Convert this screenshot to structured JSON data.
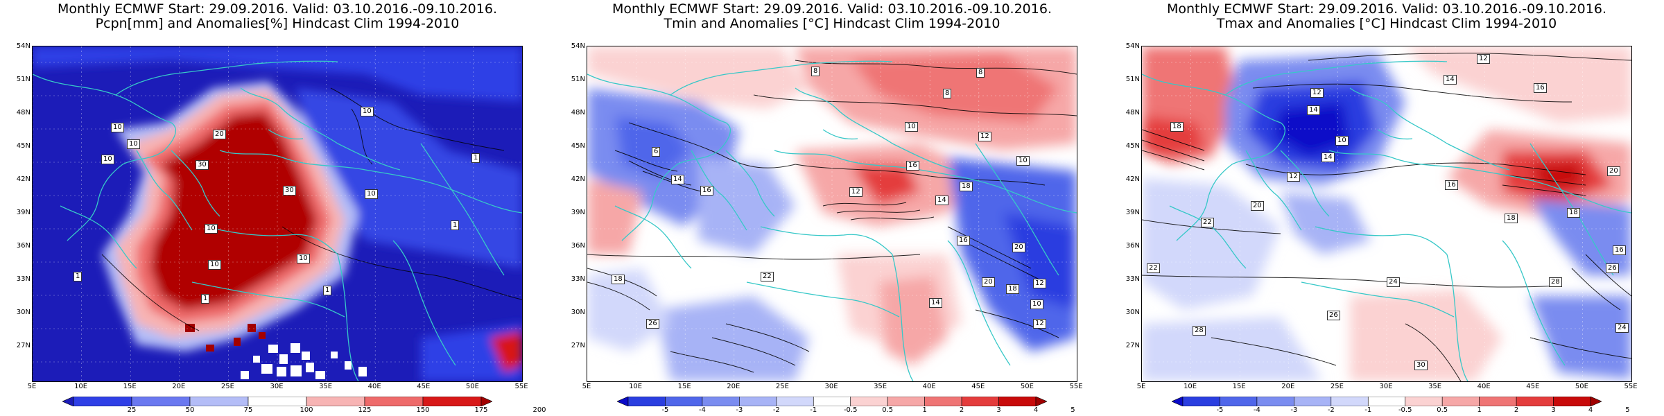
{
  "panels": [
    {
      "title_line1": "Monthly ECMWF Start: 29.09.2016. Valid: 03.10.2016.-09.10.2016.",
      "title_line2": "Pcpn[mm] and Anomalies[%] Hindcast Clim 1994-2010",
      "colorbar": {
        "labels": [
          "25",
          "50",
          "75",
          "100",
          "125",
          "150",
          "175",
          "200"
        ],
        "colors": [
          "#1c1cb8",
          "#2f3fe6",
          "#6a78f0",
          "#b4bdf7",
          "#ffffff",
          "#f7b4b4",
          "#ee6a6a",
          "#d81818",
          "#a20000"
        ]
      },
      "contour_labels": [
        "10",
        "10",
        "10",
        "20",
        "30",
        "30",
        "10",
        "10",
        "10",
        "10",
        "1",
        "1",
        "1",
        "1",
        "1",
        "10"
      ]
    },
    {
      "title_line1": "Monthly ECMWF Start: 29.09.2016. Valid: 03.10.2016.-09.10.2016.",
      "title_line2": "Tmin and Anomalies [°C] Hindcast Clim 1994-2010",
      "colorbar": {
        "labels": [
          "-5",
          "-4",
          "-3",
          "-2",
          "-1",
          "-0.5",
          "0.5",
          "1",
          "2",
          "3",
          "4",
          "5"
        ],
        "colors": [
          "#0a0ac8",
          "#2a3ee0",
          "#4f66ea",
          "#7a8cf0",
          "#a7b3f6",
          "#d2d8fb",
          "#ffffff",
          "#fbd2d2",
          "#f6a7a7",
          "#ef7474",
          "#e43c3c",
          "#c80a0a",
          "#a00000"
        ]
      },
      "contour_labels": [
        "8",
        "8",
        "10",
        "12",
        "10",
        "12",
        "14",
        "16",
        "18",
        "22",
        "20",
        "18",
        "16",
        "14",
        "12",
        "10",
        "8",
        "6",
        "26",
        "18",
        "20",
        "16",
        "14",
        "12"
      ]
    },
    {
      "title_line1": "Monthly ECMWF Start: 29.09.2016. Valid: 03.10.2016.-09.10.2016.",
      "title_line2": "Tmax and Anomalies [°C] Hindcast Clim 1994-2010",
      "colorbar": {
        "labels": [
          "-5",
          "-4",
          "-3",
          "-2",
          "-1",
          "-0.5",
          "0.5",
          "1",
          "2",
          "3",
          "4",
          "5"
        ],
        "colors": [
          "#0a0ac8",
          "#2a3ee0",
          "#4f66ea",
          "#7a8cf0",
          "#a7b3f6",
          "#d2d8fb",
          "#ffffff",
          "#fbd2d2",
          "#f6a7a7",
          "#ef7474",
          "#e43c3c",
          "#c80a0a",
          "#a00000"
        ]
      },
      "contour_labels": [
        "12",
        "14",
        "16",
        "18",
        "14",
        "12",
        "10",
        "12",
        "14",
        "16",
        "18",
        "20",
        "22",
        "24",
        "26",
        "28",
        "30",
        "28",
        "26",
        "24",
        "22",
        "20",
        "18",
        "16"
      ]
    }
  ],
  "lat_labels": [
    "54N",
    "51N",
    "48N",
    "45N",
    "42N",
    "39N",
    "36N",
    "33N",
    "30N",
    "27N"
  ],
  "lon_labels": [
    "5E",
    "10E",
    "15E",
    "20E",
    "25E",
    "30E",
    "35E",
    "40E",
    "45E",
    "50E",
    "55E"
  ]
}
